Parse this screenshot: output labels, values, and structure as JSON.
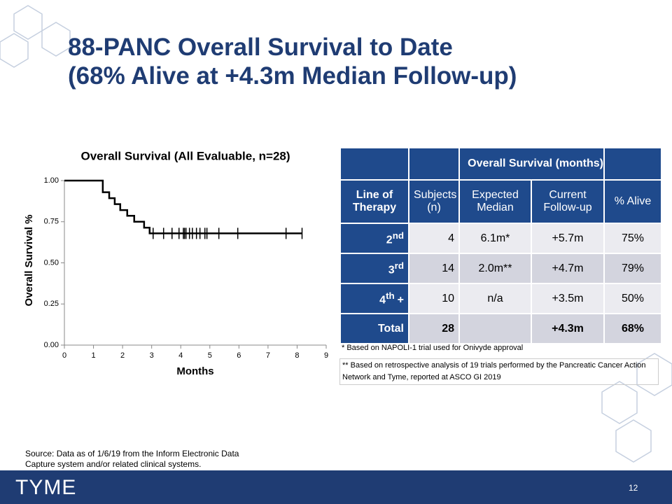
{
  "title": [
    "88-PANC Overall Survival to Date",
    "(68% Alive at +4.3m Median Follow-up)"
  ],
  "chart_data": {
    "type": "step",
    "title": "Overall Survival (All Evaluable, n=28)",
    "x_label": "Months",
    "y_label": "Overall Survival %",
    "x": [
      0,
      1.32,
      1.54,
      1.73,
      1.92,
      2.16,
      2.4,
      2.74,
      2.93,
      8.17
    ],
    "values": [
      1,
      0.929,
      0.893,
      0.857,
      0.821,
      0.786,
      0.75,
      0.714,
      0.679,
      0.679
    ],
    "color": "#000000",
    "censored": {
      "x": [
        3.05,
        3.41,
        3.7,
        3.94,
        4.09,
        4.13,
        4.18,
        4.3,
        4.4,
        4.54,
        4.66,
        4.83,
        4.9,
        5.31,
        5.96,
        7.62,
        8.17
      ],
      "values": [
        0.679,
        0.679,
        0.679,
        0.679,
        0.679,
        0.679,
        0.679,
        0.679,
        0.679,
        0.679,
        0.679,
        0.679,
        0.679,
        0.679,
        0.679,
        0.679,
        0.679
      ]
    },
    "xlim": [
      0,
      9
    ],
    "xticks": [
      0,
      1,
      2,
      3,
      4,
      5,
      6,
      7,
      8,
      9
    ],
    "ylim": [
      0,
      1
    ],
    "yticks": [
      {
        "value": 0,
        "label": "0.00"
      },
      {
        "value": 0.25,
        "label": "0.25"
      },
      {
        "value": 0.5,
        "label": "0.50"
      },
      {
        "value": 0.75,
        "label": "0.75"
      },
      {
        "value": 1,
        "label": "1.00"
      }
    ]
  },
  "table": {
    "group_header": "Overall Survival (months)",
    "columns": [
      "Line of Therapy",
      "Subjects (n)",
      "Expected Median",
      "Current Follow-up",
      "% Alive"
    ],
    "rows": [
      {
        "line": {
          "base": "2",
          "sup": "nd"
        },
        "cells": [
          "4",
          "6.1m*",
          "+5.7m",
          "75%"
        ]
      },
      {
        "line": {
          "base": "3",
          "sup": "rd"
        },
        "cells": [
          "14",
          "2.0m**",
          "+4.7m",
          "79%"
        ]
      },
      {
        "line": {
          "base": "4",
          "sup": "th",
          "suffix": "+"
        },
        "cells": [
          "10",
          "n/a",
          "+3.5m",
          "50%"
        ]
      },
      {
        "line": {
          "base": "Total"
        },
        "cells": [
          "28",
          null,
          "+4.3m",
          "68%"
        ]
      }
    ]
  },
  "footnotes": [
    "* Based on NAPOLI-1 trial used for Onivyde approval",
    "** Based on retrospective analysis of 19 trials performed by the Pancreatic Cancer Action Network and Tyme,  reported at ASCO GI 2019"
  ],
  "source": [
    "Source: Data as of 1/6/19 from the Inform Electronic Data",
    "Capture system and/or related clinical systems."
  ],
  "logo": "TYME",
  "page_number": "12"
}
